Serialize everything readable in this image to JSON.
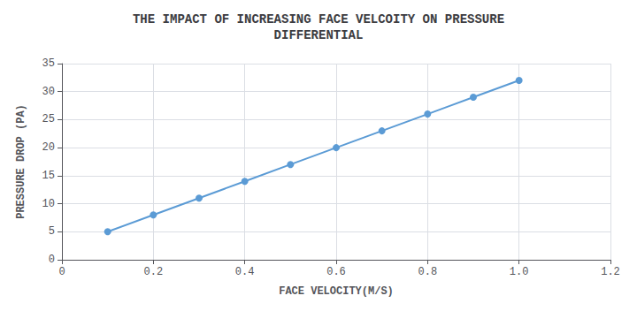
{
  "chart_data": {
    "type": "line",
    "title": "THE IMPACT OF INCREASING FACE VELCOITY ON PRESSURE\nDIFFERENTIAL",
    "xlabel": "FACE VELOCITY(M/S)",
    "ylabel": "PRESSURE DROP (PA)",
    "x": [
      0.1,
      0.2,
      0.3,
      0.4,
      0.5,
      0.6,
      0.7,
      0.8,
      0.9,
      1.0
    ],
    "values": [
      5,
      8,
      11,
      14,
      17,
      20,
      23,
      26,
      29,
      32
    ],
    "color": "#5b9bd5",
    "marker": "circle",
    "xlim": [
      0,
      1.2
    ],
    "ylim": [
      0,
      35
    ],
    "xticks": [
      0,
      0.2,
      0.4,
      0.6,
      0.8,
      {
        "value": 1.0,
        "label": "1.0"
      },
      1.2
    ],
    "yticks": [
      0,
      5,
      10,
      15,
      20,
      25,
      30,
      35
    ],
    "grid": true
  }
}
